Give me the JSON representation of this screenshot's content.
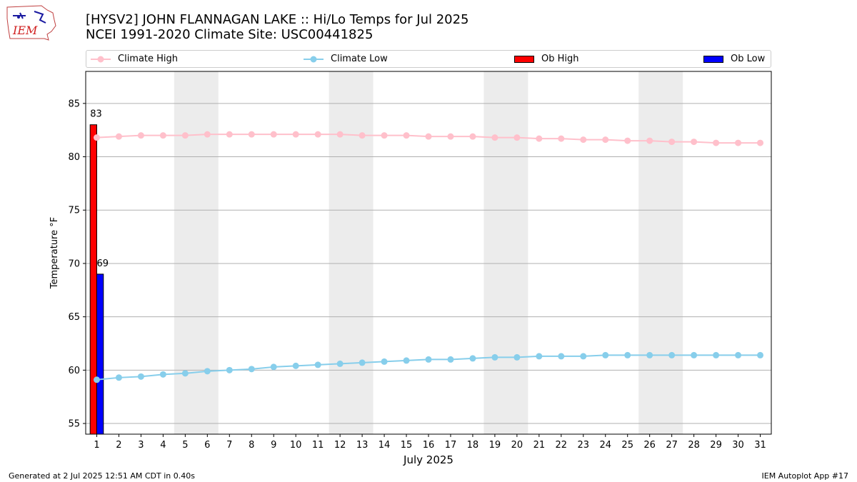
{
  "header": {
    "title_line1": "[HYSV2] JOHN FLANNAGAN LAKE :: Hi/Lo Temps for Jul 2025",
    "title_line2": "NCEI 1991-2020 Climate Site: USC00441825",
    "logo_text": "IEM"
  },
  "footer": {
    "generated": "Generated at 2 Jul 2025 12:51 AM CDT in 0.40s",
    "app": "IEM Autoplot App #17"
  },
  "colors": {
    "climate_high": "#ffc0cb",
    "climate_low": "#87ceeb",
    "ob_high": "#ff0000",
    "ob_low": "#0000ff",
    "weekend_band": "#ececec",
    "grid": "#b0b0b0"
  },
  "chart_data": {
    "type": "bar",
    "xlabel": "July 2025",
    "ylabel": "Temperature °F",
    "ylim": [
      54,
      88
    ],
    "xlim": [
      0.5,
      31.5
    ],
    "yticks": [
      55,
      60,
      65,
      70,
      75,
      80,
      85
    ],
    "x": [
      1,
      2,
      3,
      4,
      5,
      6,
      7,
      8,
      9,
      10,
      11,
      12,
      13,
      14,
      15,
      16,
      17,
      18,
      19,
      20,
      21,
      22,
      23,
      24,
      25,
      26,
      27,
      28,
      29,
      30,
      31
    ],
    "grid": "horizontal",
    "legend_position": "top",
    "weekends": [
      [
        5,
        6
      ],
      [
        12,
        13
      ],
      [
        19,
        20
      ],
      [
        26,
        27
      ]
    ],
    "series": [
      {
        "name": "Climate High",
        "kind": "line",
        "values": [
          81.8,
          81.9,
          82.0,
          82.0,
          82.0,
          82.1,
          82.1,
          82.1,
          82.1,
          82.1,
          82.1,
          82.1,
          82.0,
          82.0,
          82.0,
          81.9,
          81.9,
          81.9,
          81.8,
          81.8,
          81.7,
          81.7,
          81.6,
          81.6,
          81.5,
          81.5,
          81.4,
          81.4,
          81.3,
          81.3,
          81.3
        ]
      },
      {
        "name": "Climate Low",
        "kind": "line",
        "values": [
          59.1,
          59.3,
          59.4,
          59.6,
          59.7,
          59.9,
          60.0,
          60.1,
          60.3,
          60.4,
          60.5,
          60.6,
          60.7,
          60.8,
          60.9,
          61.0,
          61.0,
          61.1,
          61.2,
          61.2,
          61.3,
          61.3,
          61.3,
          61.4,
          61.4,
          61.4,
          61.4,
          61.4,
          61.4,
          61.4,
          61.4
        ]
      },
      {
        "name": "Ob High",
        "kind": "bar",
        "x": [
          1
        ],
        "values": [
          83
        ],
        "labels": [
          "83"
        ]
      },
      {
        "name": "Ob Low",
        "kind": "bar",
        "x": [
          1
        ],
        "values": [
          69
        ],
        "labels": [
          "69"
        ]
      }
    ]
  }
}
